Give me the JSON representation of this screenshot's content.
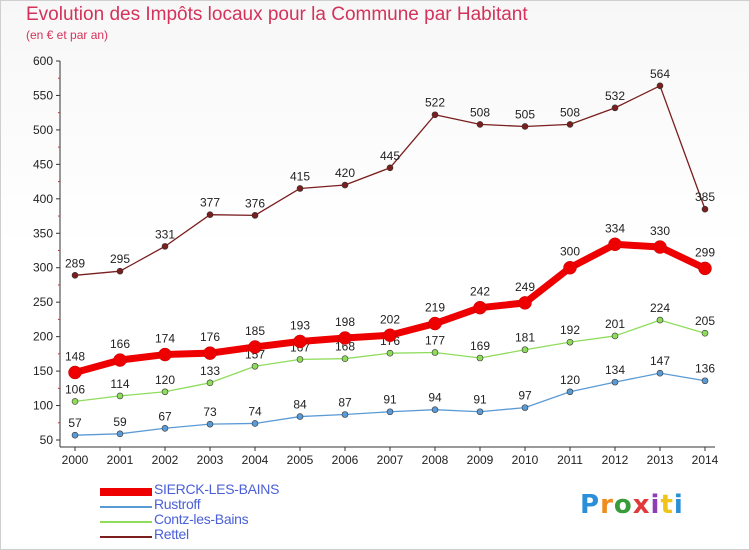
{
  "title": "Evolution des Impôts locaux pour la Commune par Habitant",
  "subtitle": "(en € et par an)",
  "logo": {
    "text": "Proxiti",
    "colors": [
      "#2a8fd6",
      "#f08c1e",
      "#3a9b3a",
      "#e03a3a",
      "#8c3fb5",
      "#f0c419",
      "#2a8fd6"
    ]
  },
  "chart_data": {
    "type": "line",
    "x": [
      2000,
      2001,
      2002,
      2003,
      2004,
      2005,
      2006,
      2007,
      2008,
      2009,
      2010,
      2011,
      2012,
      2013,
      2014
    ],
    "ylim": [
      50,
      600
    ],
    "yticks": [
      50,
      100,
      150,
      200,
      250,
      300,
      350,
      400,
      450,
      500,
      550,
      600
    ],
    "grid": false,
    "legend_position": "bottom-left",
    "series": [
      {
        "name": "Rettel",
        "color": "#7a1e1e",
        "values": [
          289,
          295,
          331,
          377,
          376,
          415,
          420,
          445,
          522,
          508,
          505,
          508,
          532,
          564,
          385
        ]
      },
      {
        "name": "Contz-les-Bains",
        "color": "#8fdc5c",
        "values": [
          106,
          114,
          120,
          133,
          157,
          167,
          168,
          176,
          177,
          169,
          181,
          192,
          201,
          224,
          205
        ]
      },
      {
        "name": "Rustroff",
        "color": "#5b9bd5",
        "values": [
          57,
          59,
          67,
          73,
          74,
          84,
          87,
          91,
          94,
          91,
          97,
          120,
          134,
          147,
          136
        ]
      },
      {
        "name": "SIERCK-LES-BAINS",
        "color": "#ee0000",
        "values": [
          148,
          166,
          174,
          176,
          185,
          193,
          198,
          202,
          219,
          242,
          249,
          300,
          334,
          330,
          299
        ]
      }
    ],
    "legend_order": [
      "SIERCK-LES-BAINS",
      "Rustroff",
      "Contz-les-Bains",
      "Rettel"
    ]
  }
}
